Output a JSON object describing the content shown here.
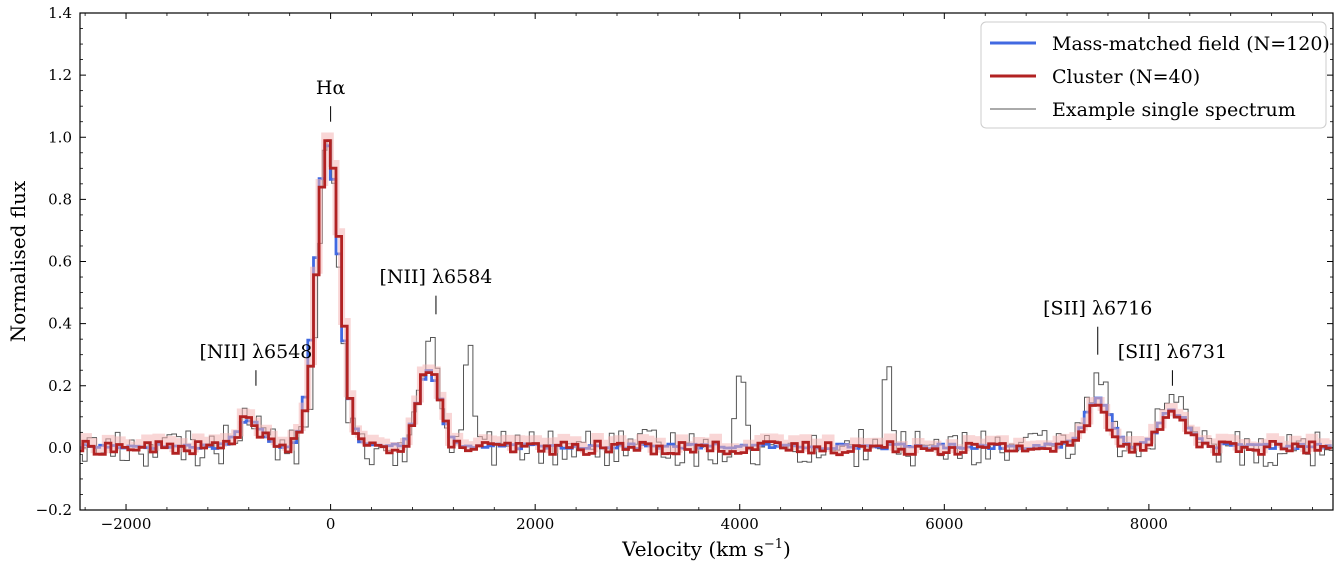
{
  "chart_data": {
    "type": "line",
    "xlabel": "Velocity (km s",
    "xlabel_sup": "−1",
    "xlabel_end": ")",
    "ylabel": "Normalised flux",
    "xlim": [
      -2450,
      9800
    ],
    "ylim": [
      -0.2,
      1.4
    ],
    "xticks": [
      -2000,
      0,
      2000,
      4000,
      6000,
      8000
    ],
    "xtick_labels": [
      "−2000",
      "0",
      "2000",
      "4000",
      "6000",
      "8000"
    ],
    "yticks": [
      -0.2,
      0.0,
      0.2,
      0.4,
      0.6,
      0.8,
      1.0,
      1.2,
      1.4
    ],
    "ytick_labels": [
      "−0.2",
      "0.0",
      "0.2",
      "0.4",
      "0.6",
      "0.8",
      "1.0",
      "1.2",
      "1.4"
    ],
    "grid": false,
    "legend_position": "top-right",
    "series": [
      {
        "name": "Mass-matched field (N=120)",
        "color": "#4169e1",
        "profile": {
          "lines": [
            {
              "v": -800,
              "amp": 0.085,
              "sigma": 110
            },
            {
              "v": -30,
              "amp": 0.97,
              "sigma": 115
            },
            {
              "v": 960,
              "amp": 0.25,
              "sigma": 105
            },
            {
              "v": 7500,
              "amp": 0.155,
              "sigma": 120
            },
            {
              "v": 8230,
              "amp": 0.11,
              "sigma": 140
            }
          ],
          "baseline": 0.005,
          "noise": 0.008
        }
      },
      {
        "name": "Cluster (N=40)",
        "color": "#b22222",
        "profile": {
          "lines": [
            {
              "v": -800,
              "amp": 0.09,
              "sigma": 110
            },
            {
              "v": -20,
              "amp": 1.0,
              "sigma": 110
            },
            {
              "v": 960,
              "amp": 0.26,
              "sigma": 100
            },
            {
              "v": 7500,
              "amp": 0.135,
              "sigma": 110
            },
            {
              "v": 8230,
              "amp": 0.105,
              "sigma": 140
            }
          ],
          "baseline": 0.0,
          "noise": 0.022
        }
      },
      {
        "name": "Example single spectrum",
        "color": "#555555",
        "profile": {
          "lines": [
            {
              "v": -800,
              "amp": 0.11,
              "sigma": 110
            },
            {
              "v": -20,
              "amp": 0.98,
              "sigma": 95
            },
            {
              "v": 960,
              "amp": 0.34,
              "sigma": 90
            },
            {
              "v": 1360,
              "amp": 0.38,
              "sigma": 35
            },
            {
              "v": 4000,
              "amp": 0.3,
              "sigma": 35
            },
            {
              "v": 5440,
              "amp": 0.26,
              "sigma": 35
            },
            {
              "v": 7500,
              "amp": 0.24,
              "sigma": 100
            },
            {
              "v": 8230,
              "amp": 0.13,
              "sigma": 140
            }
          ],
          "baseline": 0.0,
          "noise": 0.06
        }
      }
    ],
    "annotations": [
      {
        "text": "[NII] λ6548",
        "x": -730,
        "y_text": 0.29,
        "tick_top": 0.25,
        "tick_bottom": 0.2
      },
      {
        "text": "Hα",
        "x": 0,
        "y_text": 1.14,
        "tick_top": 1.1,
        "tick_bottom": 1.05
      },
      {
        "text": "[NII] λ6584",
        "x": 1030,
        "y_text": 0.53,
        "tick_top": 0.49,
        "tick_bottom": 0.43
      },
      {
        "text": "[SII] λ6716",
        "x": 7500,
        "y_text": 0.43,
        "tick_top": 0.39,
        "tick_bottom": 0.3
      },
      {
        "text": "[SII] λ6731",
        "x": 8230,
        "y_text": 0.29,
        "tick_top": 0.25,
        "tick_bottom": 0.2
      }
    ]
  }
}
